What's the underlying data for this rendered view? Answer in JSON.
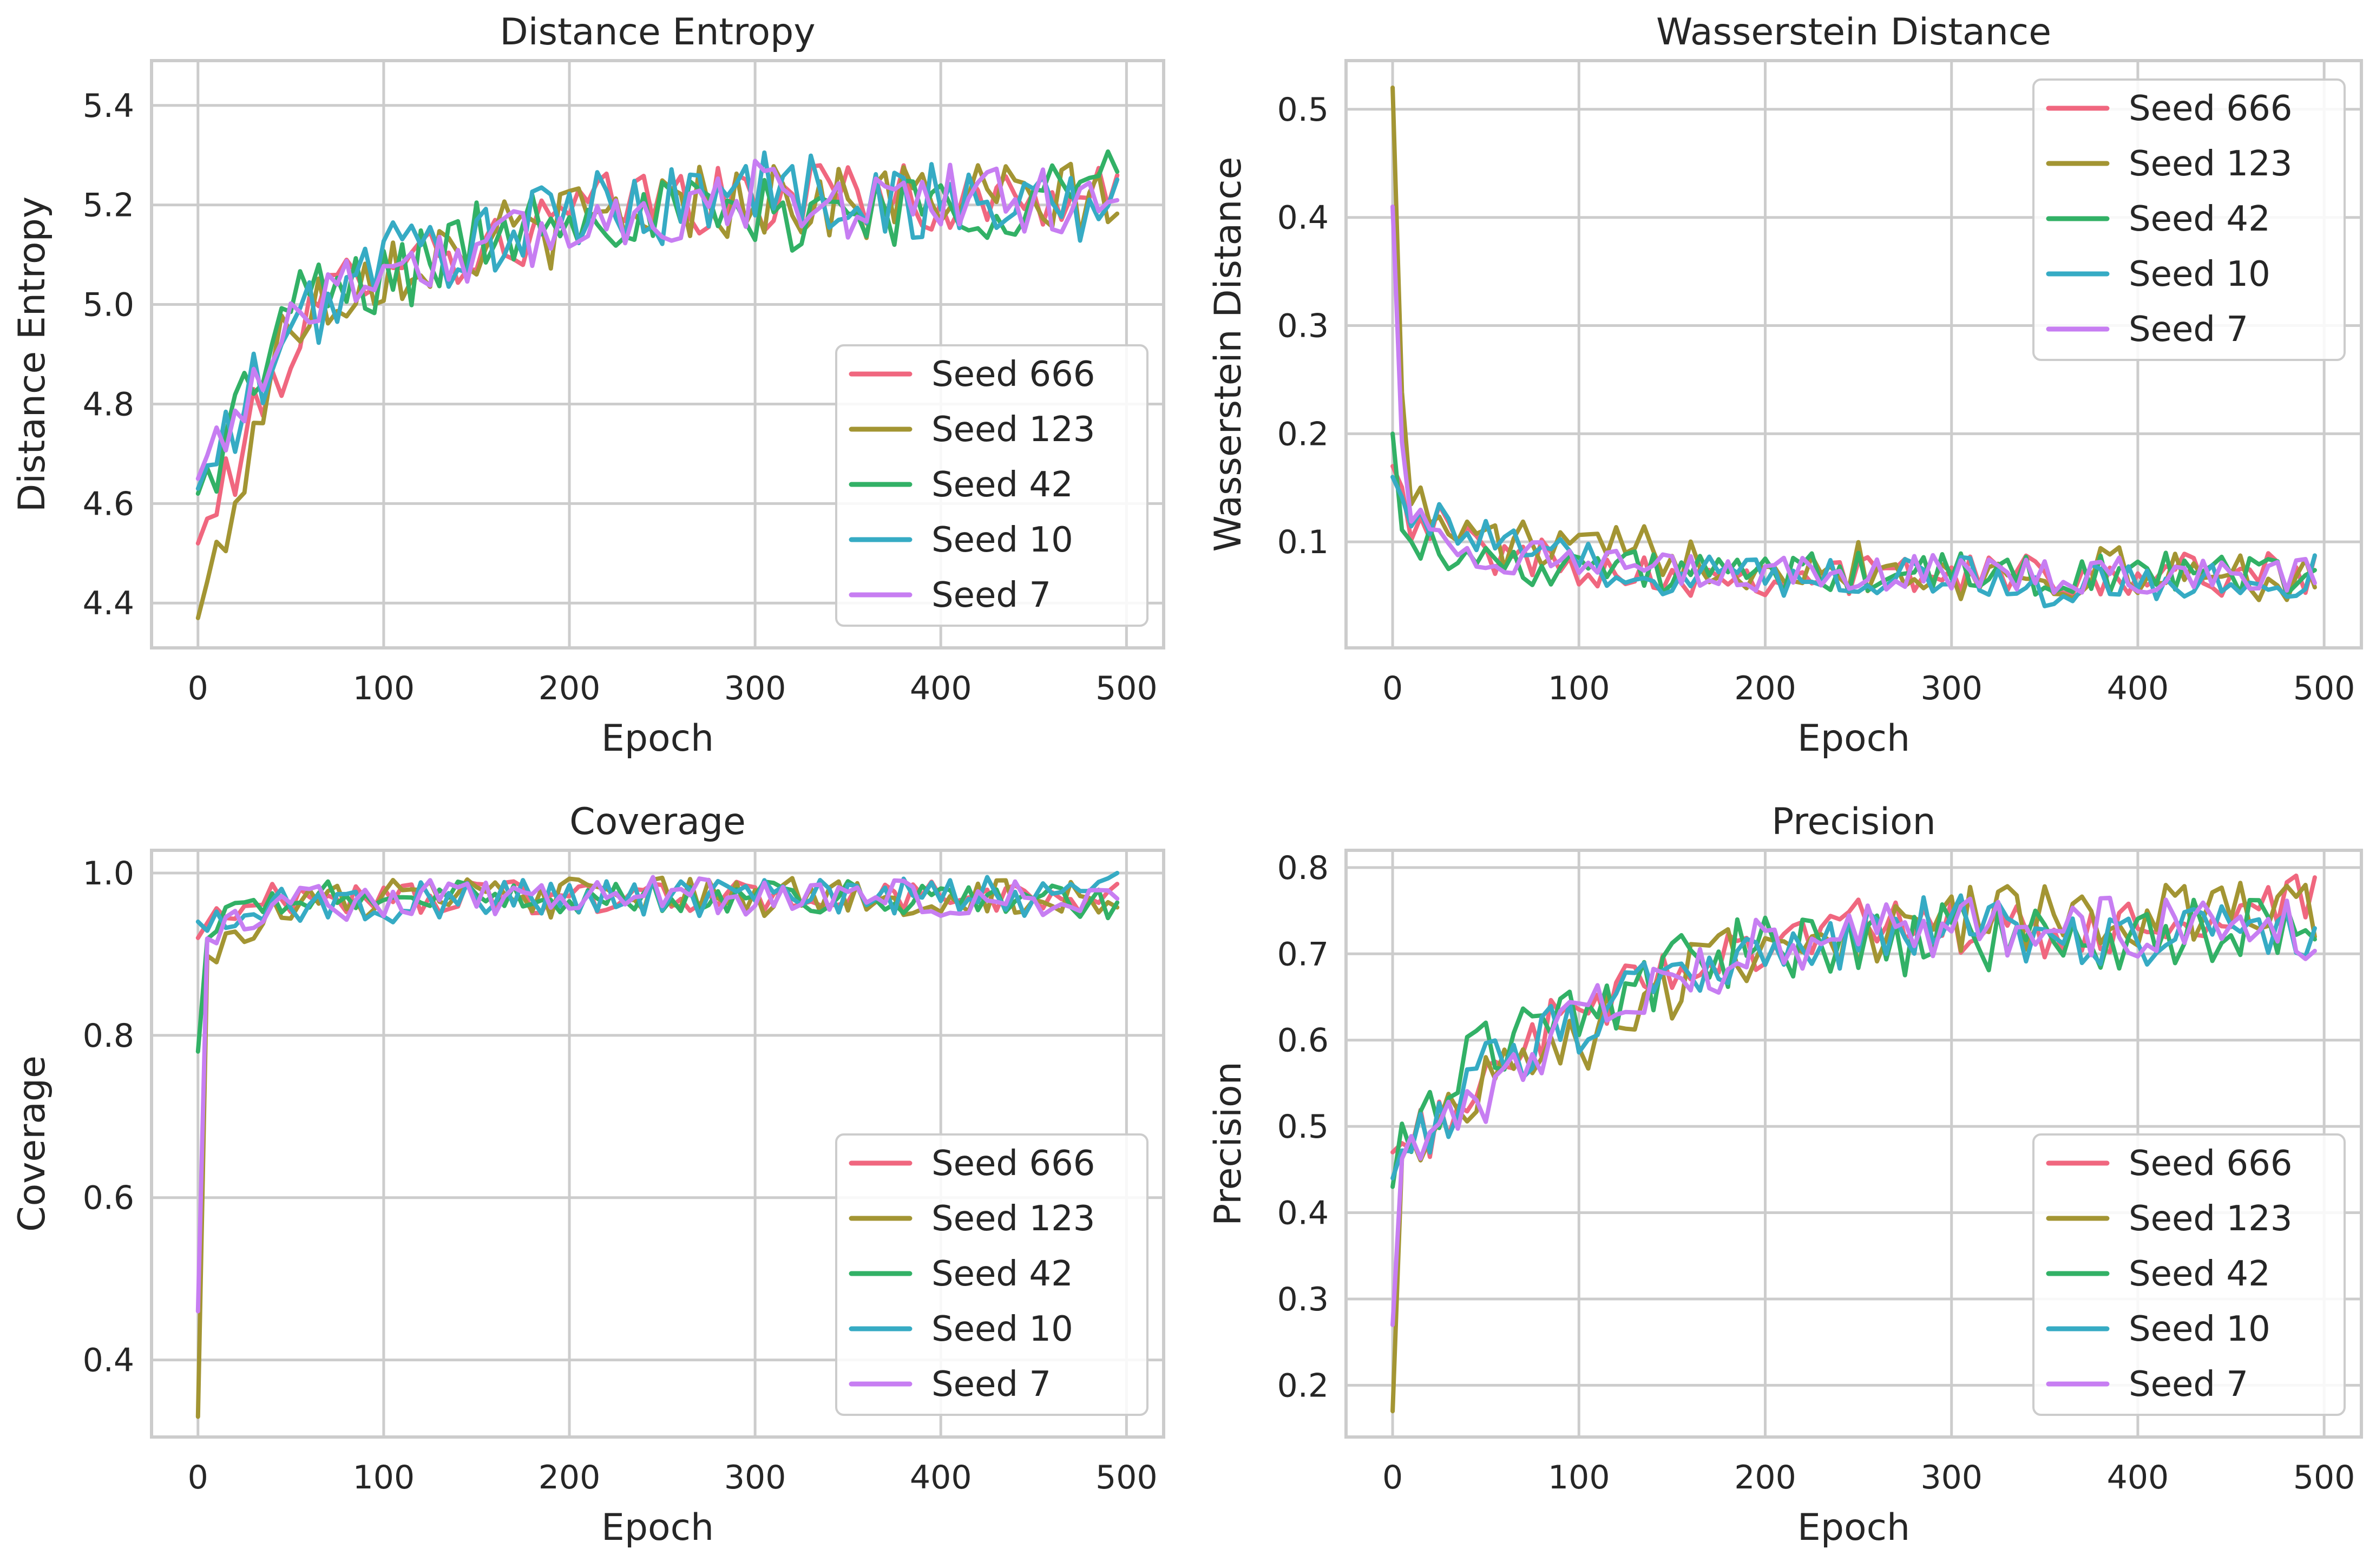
{
  "chart_data": [
    {
      "type": "line",
      "title": "Distance Entropy",
      "xlabel": "Epoch",
      "ylabel": "Distance Entropy",
      "xlim": [
        -25,
        520
      ],
      "ylim": [
        4.31,
        5.49
      ],
      "xticks": [
        0,
        100,
        200,
        300,
        400,
        500
      ],
      "yticks": [
        4.4,
        4.6,
        4.8,
        5.0,
        5.2,
        5.4
      ],
      "ytick_decimals": 1,
      "grid": true,
      "legend_position": "lower-right",
      "x": [
        0,
        50,
        100,
        150,
        200,
        250,
        300,
        350,
        400,
        450,
        495
      ],
      "series": [
        {
          "name": "Seed 666",
          "color": "#f0677f",
          "values": [
            4.52,
            4.92,
            5.12,
            5.1,
            5.18,
            5.22,
            5.2,
            5.24,
            5.2,
            5.22,
            5.2
          ],
          "noise": 0.07
        },
        {
          "name": "Seed 123",
          "color": "#a39533",
          "values": [
            4.37,
            4.98,
            5.08,
            5.12,
            5.16,
            5.2,
            5.22,
            5.2,
            5.22,
            5.2,
            5.22
          ],
          "noise": 0.08
        },
        {
          "name": "Seed 42",
          "color": "#32b166",
          "values": [
            4.62,
            5.0,
            5.05,
            5.13,
            5.2,
            5.18,
            5.17,
            5.2,
            5.19,
            5.22,
            5.25
          ],
          "noise": 0.08
        },
        {
          "name": "Seed 10",
          "color": "#36abc4",
          "values": [
            4.63,
            4.95,
            5.1,
            5.12,
            5.18,
            5.2,
            5.24,
            5.22,
            5.2,
            5.22,
            5.18
          ],
          "noise": 0.08
        },
        {
          "name": "Seed 7",
          "color": "#c77ef2",
          "values": [
            4.65,
            4.98,
            5.08,
            5.1,
            5.16,
            5.19,
            5.22,
            5.2,
            5.22,
            5.2,
            5.24
          ],
          "noise": 0.07
        }
      ]
    },
    {
      "type": "line",
      "title": "Wasserstein Distance",
      "xlabel": "Epoch",
      "ylabel": "Wasserstein Distance",
      "xlim": [
        -25,
        520
      ],
      "ylim": [
        0.002,
        0.545
      ],
      "xticks": [
        0,
        100,
        200,
        300,
        400,
        500
      ],
      "yticks": [
        0.1,
        0.2,
        0.3,
        0.4,
        0.5
      ],
      "ytick_decimals": 1,
      "grid": true,
      "legend_position": "upper-right",
      "x": [
        0,
        5,
        10,
        20,
        50,
        100,
        150,
        200,
        250,
        300,
        350,
        400,
        450,
        495
      ],
      "series": [
        {
          "name": "Seed 666",
          "color": "#f0677f",
          "values": [
            0.17,
            0.16,
            0.12,
            0.12,
            0.09,
            0.08,
            0.07,
            0.07,
            0.07,
            0.07,
            0.07,
            0.07,
            0.07,
            0.07
          ],
          "noise": 0.02
        },
        {
          "name": "Seed 123",
          "color": "#a39533",
          "values": [
            0.52,
            0.25,
            0.14,
            0.12,
            0.1,
            0.09,
            0.09,
            0.08,
            0.08,
            0.07,
            0.07,
            0.07,
            0.07,
            0.07
          ],
          "noise": 0.025
        },
        {
          "name": "Seed 42",
          "color": "#32b166",
          "values": [
            0.2,
            0.12,
            0.09,
            0.1,
            0.08,
            0.08,
            0.07,
            0.07,
            0.07,
            0.07,
            0.07,
            0.07,
            0.07,
            0.07
          ],
          "noise": 0.02
        },
        {
          "name": "Seed 10",
          "color": "#36abc4",
          "values": [
            0.16,
            0.15,
            0.13,
            0.12,
            0.1,
            0.08,
            0.07,
            0.07,
            0.07,
            0.07,
            0.06,
            0.06,
            0.06,
            0.07
          ],
          "noise": 0.02
        },
        {
          "name": "Seed 7",
          "color": "#c77ef2",
          "values": [
            0.41,
            0.2,
            0.12,
            0.11,
            0.09,
            0.08,
            0.07,
            0.07,
            0.07,
            0.07,
            0.07,
            0.07,
            0.07,
            0.07
          ],
          "noise": 0.018
        }
      ]
    },
    {
      "type": "line",
      "title": "Coverage",
      "xlabel": "Epoch",
      "ylabel": "Coverage",
      "xlim": [
        -25,
        520
      ],
      "ylim": [
        0.305,
        1.028
      ],
      "xticks": [
        0,
        100,
        200,
        300,
        400,
        500
      ],
      "yticks": [
        0.4,
        0.6,
        0.8,
        1.0
      ],
      "ytick_decimals": 1,
      "grid": true,
      "legend_position": "lower-right",
      "x": [
        0,
        5,
        20,
        50,
        100,
        150,
        200,
        250,
        300,
        350,
        400,
        450,
        495
      ],
      "series": [
        {
          "name": "Seed 666",
          "color": "#f0677f",
          "values": [
            0.92,
            0.94,
            0.96,
            0.97,
            0.97,
            0.97,
            0.97,
            0.97,
            0.97,
            0.97,
            0.97,
            0.97,
            0.97
          ],
          "noise": 0.02
        },
        {
          "name": "Seed 123",
          "color": "#a39533",
          "values": [
            0.33,
            0.9,
            0.93,
            0.96,
            0.97,
            0.97,
            0.97,
            0.97,
            0.97,
            0.97,
            0.97,
            0.97,
            0.97
          ],
          "noise": 0.025
        },
        {
          "name": "Seed 42",
          "color": "#32b166",
          "values": [
            0.78,
            0.92,
            0.95,
            0.97,
            0.97,
            0.97,
            0.97,
            0.97,
            0.97,
            0.97,
            0.97,
            0.97,
            0.96
          ],
          "noise": 0.02
        },
        {
          "name": "Seed 10",
          "color": "#36abc4",
          "values": [
            0.94,
            0.93,
            0.95,
            0.96,
            0.96,
            0.97,
            0.97,
            0.97,
            0.97,
            0.97,
            0.97,
            0.97,
            0.98
          ],
          "noise": 0.025
        },
        {
          "name": "Seed 7",
          "color": "#c77ef2",
          "values": [
            0.46,
            0.92,
            0.95,
            0.96,
            0.97,
            0.97,
            0.97,
            0.97,
            0.97,
            0.97,
            0.97,
            0.97,
            0.98
          ],
          "noise": 0.025
        }
      ]
    },
    {
      "type": "line",
      "title": "Precision",
      "xlabel": "Epoch",
      "ylabel": "Precision",
      "xlim": [
        -25,
        520
      ],
      "ylim": [
        0.14,
        0.82
      ],
      "xticks": [
        0,
        100,
        200,
        300,
        400,
        500
      ],
      "yticks": [
        0.2,
        0.3,
        0.4,
        0.5,
        0.6,
        0.7,
        0.8
      ],
      "ytick_decimals": 1,
      "grid": true,
      "legend_position": "lower-right",
      "x": [
        0,
        5,
        25,
        50,
        100,
        150,
        200,
        250,
        300,
        350,
        400,
        450,
        495
      ],
      "series": [
        {
          "name": "Seed 666",
          "color": "#f0677f",
          "values": [
            0.47,
            0.47,
            0.5,
            0.57,
            0.63,
            0.68,
            0.72,
            0.73,
            0.73,
            0.72,
            0.73,
            0.74,
            0.76
          ],
          "noise": 0.035
        },
        {
          "name": "Seed 123",
          "color": "#a39533",
          "values": [
            0.17,
            0.45,
            0.5,
            0.57,
            0.6,
            0.66,
            0.72,
            0.72,
            0.74,
            0.74,
            0.74,
            0.75,
            0.74
          ],
          "noise": 0.04
        },
        {
          "name": "Seed 42",
          "color": "#32b166",
          "values": [
            0.43,
            0.49,
            0.52,
            0.6,
            0.63,
            0.68,
            0.71,
            0.71,
            0.72,
            0.71,
            0.72,
            0.73,
            0.71
          ],
          "noise": 0.04
        },
        {
          "name": "Seed 10",
          "color": "#36abc4",
          "values": [
            0.44,
            0.46,
            0.5,
            0.57,
            0.62,
            0.67,
            0.7,
            0.72,
            0.74,
            0.72,
            0.72,
            0.74,
            0.7
          ],
          "noise": 0.035
        },
        {
          "name": "Seed 7",
          "color": "#c77ef2",
          "values": [
            0.27,
            0.45,
            0.5,
            0.54,
            0.62,
            0.67,
            0.71,
            0.72,
            0.73,
            0.73,
            0.73,
            0.74,
            0.72
          ],
          "noise": 0.035
        }
      ]
    }
  ]
}
